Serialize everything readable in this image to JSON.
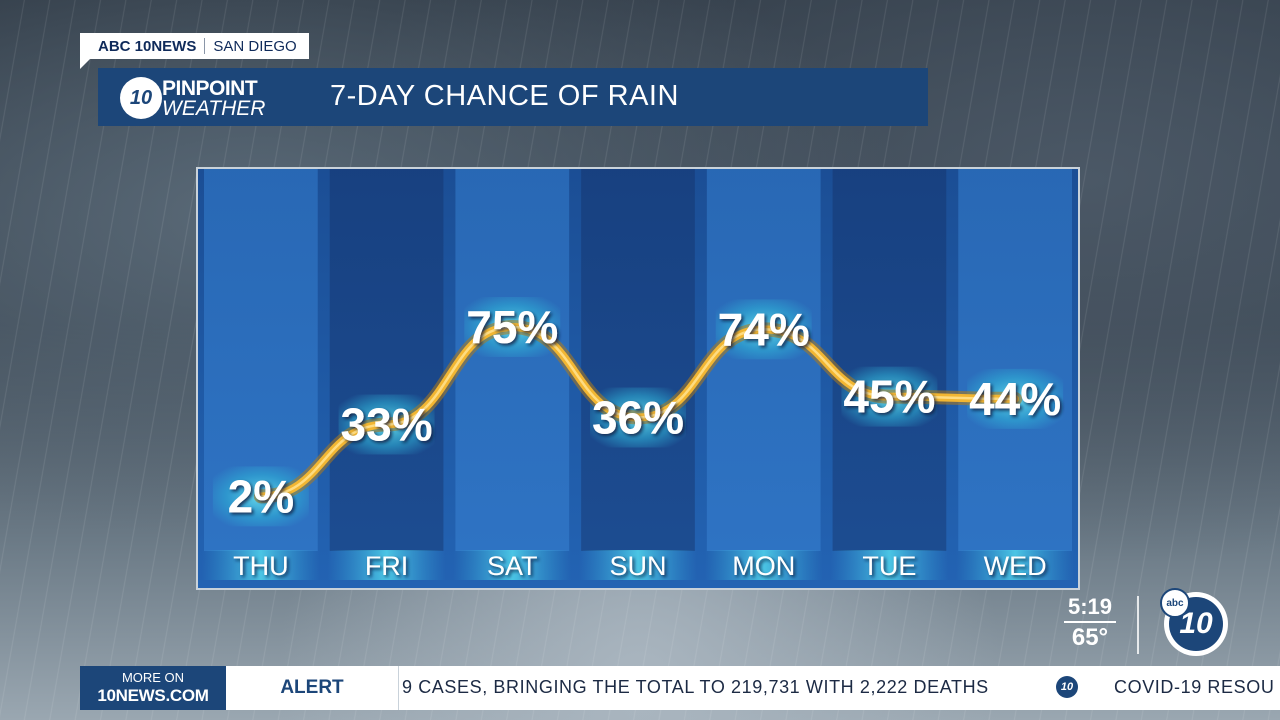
{
  "bug": {
    "network": "ABC 10NEWS",
    "market": "SAN DIEGO"
  },
  "logo": {
    "badge": "10",
    "line1": "PINPOINT",
    "line2": "WEATHER"
  },
  "title": "7-DAY CHANCE OF RAIN",
  "chart_data": {
    "type": "line",
    "categories": [
      "THU",
      "FRI",
      "SAT",
      "SUN",
      "MON",
      "TUE",
      "WED"
    ],
    "values": [
      2,
      33,
      75,
      36,
      74,
      45,
      44
    ],
    "value_labels": [
      "2%",
      "33%",
      "75%",
      "36%",
      "74%",
      "45%",
      "44%"
    ],
    "ylim": [
      0,
      100
    ],
    "line_color": "#f2b632",
    "column_colors": [
      "#2a6bb8",
      "#1a4b93"
    ]
  },
  "status": {
    "time": "5:19",
    "temp": "65°",
    "badge": "10",
    "badge_small": "abc"
  },
  "ticker": {
    "more_line1": "MORE ON",
    "more_line2": "10NEWS.COM",
    "alert_label": "ALERT",
    "crawl_text": "9 CASES, BRINGING THE TOTAL TO 219,731 WITH 2,222 DEATHS",
    "crawl_icon": "10",
    "crawl_text2": "COVID-19 RESOU"
  },
  "colors": {
    "brand_blue": "#1c4679",
    "accent_gold": "#f2b632"
  }
}
